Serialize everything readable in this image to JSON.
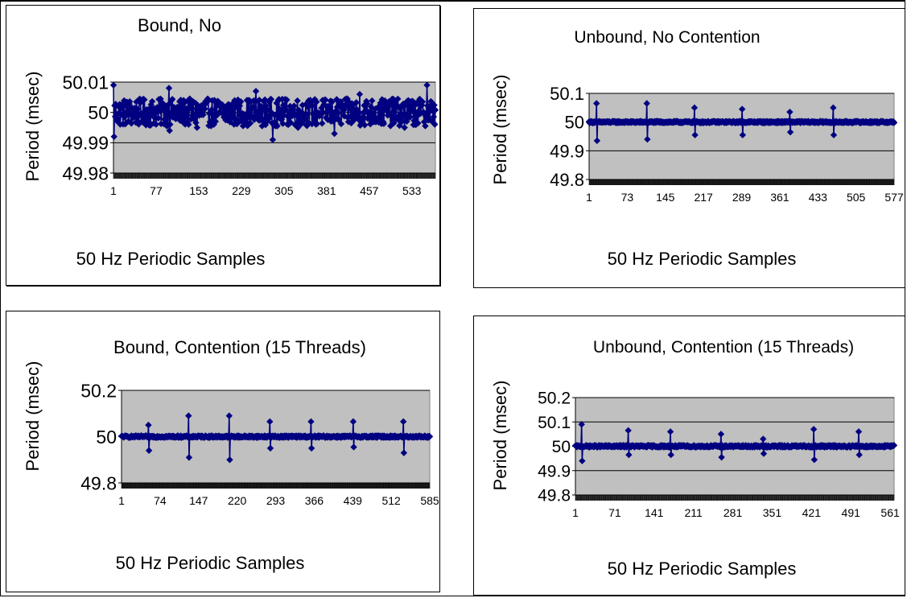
{
  "chart_data": [
    {
      "type": "scatter",
      "title": "Bound, No",
      "ylabel": "Period (msec)",
      "xlabel": "50 Hz Periodic Samples",
      "ylim": [
        49.98,
        50.01
      ],
      "yticks": [
        49.98,
        49.99,
        50,
        50.01
      ],
      "ytick_labels": [
        "49.98",
        "49.99",
        "50",
        "50.01"
      ],
      "xticks": [
        1,
        77,
        153,
        229,
        305,
        381,
        457,
        533
      ],
      "xlim": [
        1,
        575
      ],
      "grid": "horizontal",
      "background": "#c0c0c0",
      "series_color": "#000080",
      "baseline": 50,
      "noise": 0.0045,
      "spikes": [
        [
          1,
          50.009
        ],
        [
          2,
          49.992
        ],
        [
          100,
          50.008
        ],
        [
          101,
          49.994
        ],
        [
          150,
          49.995
        ],
        [
          255,
          50.007
        ],
        [
          285,
          49.991
        ],
        [
          330,
          49.995
        ],
        [
          395,
          49.993
        ],
        [
          440,
          50.006
        ],
        [
          520,
          49.995
        ],
        [
          560,
          50.009
        ]
      ]
    },
    {
      "type": "scatter",
      "title": "Unbound, No Contention",
      "ylabel": "Period (msec)",
      "xlabel": "50 Hz Periodic Samples",
      "ylim": [
        49.8,
        50.1
      ],
      "yticks": [
        49.8,
        49.9,
        50,
        50.1
      ],
      "ytick_labels": [
        "49.8",
        "49.9",
        "50",
        "50.1"
      ],
      "xticks": [
        1,
        73,
        145,
        217,
        289,
        361,
        433,
        505,
        577
      ],
      "xlim": [
        1,
        577
      ],
      "grid": "horizontal",
      "background": "#c0c0c0",
      "series_color": "#000080",
      "baseline": 50,
      "noise": 0.003,
      "spikes": [
        [
          15,
          50.065
        ],
        [
          16,
          49.935
        ],
        [
          110,
          50.065
        ],
        [
          111,
          49.94
        ],
        [
          200,
          50.05
        ],
        [
          201,
          49.955
        ],
        [
          290,
          50.045
        ],
        [
          291,
          49.955
        ],
        [
          380,
          50.035
        ],
        [
          381,
          49.965
        ],
        [
          462,
          50.05
        ],
        [
          463,
          49.955
        ]
      ]
    },
    {
      "type": "scatter",
      "title": "Bound, Contention (15 Threads)",
      "ylabel": "Period (msec)",
      "xlabel": "50 Hz Periodic Samples",
      "ylim": [
        49.8,
        50.2
      ],
      "yticks": [
        49.8,
        50,
        50.2
      ],
      "ytick_labels": [
        "49.8",
        "50",
        "50.2"
      ],
      "xticks": [
        1,
        74,
        147,
        220,
        293,
        366,
        439,
        512,
        585
      ],
      "xlim": [
        1,
        585
      ],
      "grid": "horizontal",
      "background": "#c0c0c0",
      "series_color": "#000080",
      "baseline": 50,
      "noise": 0.004,
      "spikes": [
        [
          52,
          50.05
        ],
        [
          53,
          49.94
        ],
        [
          128,
          50.09
        ],
        [
          129,
          49.91
        ],
        [
          205,
          50.09
        ],
        [
          206,
          49.9
        ],
        [
          282,
          50.065
        ],
        [
          283,
          49.95
        ],
        [
          360,
          50.065
        ],
        [
          361,
          49.95
        ],
        [
          440,
          50.065
        ],
        [
          441,
          49.955
        ],
        [
          535,
          50.065
        ],
        [
          536,
          49.93
        ]
      ]
    },
    {
      "type": "scatter",
      "title": "Unbound, Contention (15 Threads)",
      "ylabel": "Period (msec)",
      "xlabel": "50 Hz Periodic Samples",
      "ylim": [
        49.8,
        50.2
      ],
      "yticks": [
        49.8,
        49.9,
        50,
        50.1,
        50.2
      ],
      "ytick_labels": [
        "49.8",
        "49.9",
        "50",
        "50.1",
        "50.2"
      ],
      "xticks": [
        1,
        71,
        141,
        211,
        281,
        351,
        421,
        491,
        561
      ],
      "xlim": [
        1,
        568
      ],
      "grid": "horizontal",
      "background": "#c0c0c0",
      "series_color": "#000080",
      "baseline": 50,
      "noise": 0.004,
      "spikes": [
        [
          12,
          50.09
        ],
        [
          13,
          49.94
        ],
        [
          95,
          50.065
        ],
        [
          96,
          49.965
        ],
        [
          170,
          50.06
        ],
        [
          171,
          49.965
        ],
        [
          260,
          50.05
        ],
        [
          261,
          49.955
        ],
        [
          335,
          50.03
        ],
        [
          336,
          49.97
        ],
        [
          425,
          50.07
        ],
        [
          426,
          49.945
        ],
        [
          505,
          50.06
        ],
        [
          506,
          49.965
        ]
      ]
    }
  ]
}
